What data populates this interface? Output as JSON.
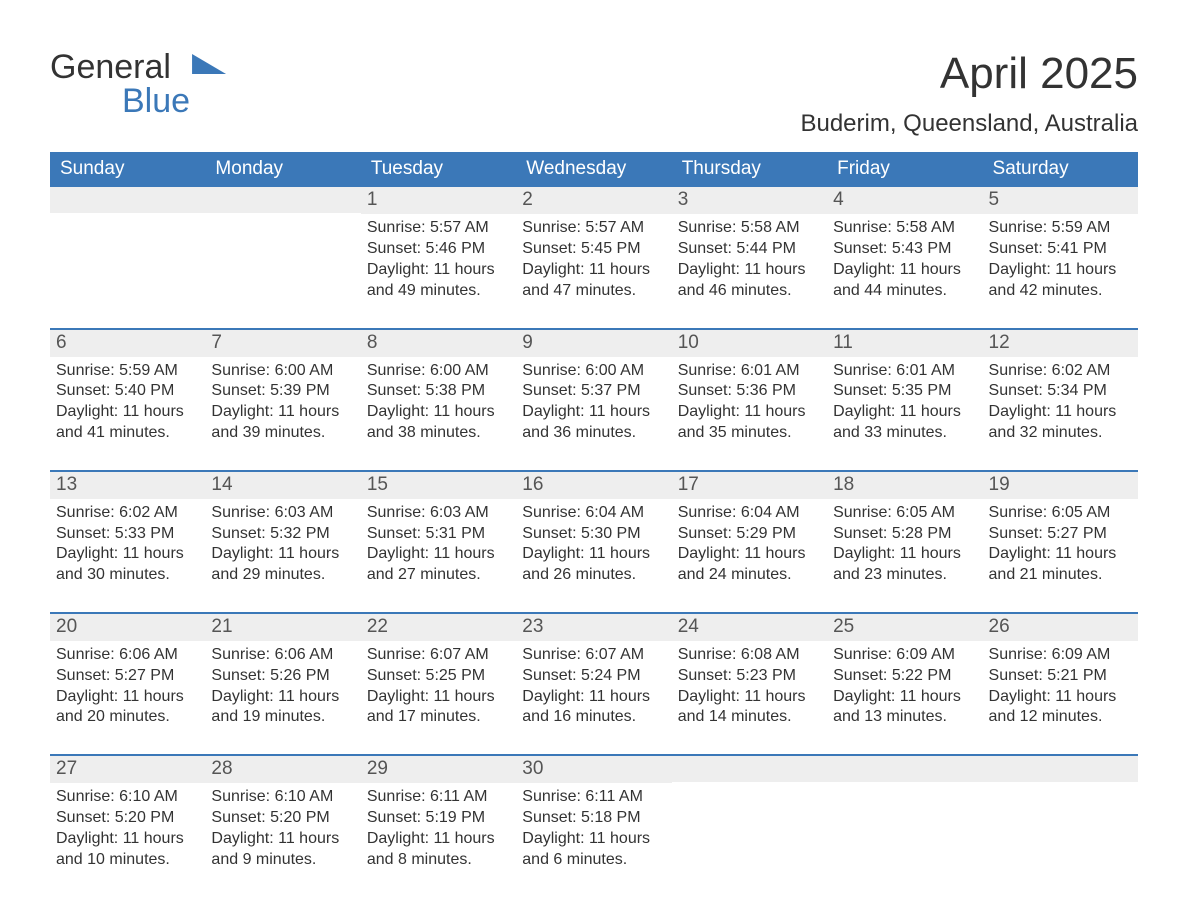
{
  "logo": {
    "word1": "General",
    "word2": "Blue"
  },
  "title": "April 2025",
  "location": "Buderim, Queensland, Australia",
  "colors": {
    "accent": "#3b78b8",
    "header_text": "#ffffff",
    "daynum_bg": "#eeeeee",
    "text": "#333333",
    "background": "#ffffff"
  },
  "calendar": {
    "type": "table",
    "columns": [
      "Sunday",
      "Monday",
      "Tuesday",
      "Wednesday",
      "Thursday",
      "Friday",
      "Saturday"
    ],
    "weeks": [
      [
        {
          "day": "",
          "sunrise": "",
          "sunset": "",
          "daylight1": "",
          "daylight2": ""
        },
        {
          "day": "",
          "sunrise": "",
          "sunset": "",
          "daylight1": "",
          "daylight2": ""
        },
        {
          "day": "1",
          "sunrise": "Sunrise: 5:57 AM",
          "sunset": "Sunset: 5:46 PM",
          "daylight1": "Daylight: 11 hours",
          "daylight2": "and 49 minutes."
        },
        {
          "day": "2",
          "sunrise": "Sunrise: 5:57 AM",
          "sunset": "Sunset: 5:45 PM",
          "daylight1": "Daylight: 11 hours",
          "daylight2": "and 47 minutes."
        },
        {
          "day": "3",
          "sunrise": "Sunrise: 5:58 AM",
          "sunset": "Sunset: 5:44 PM",
          "daylight1": "Daylight: 11 hours",
          "daylight2": "and 46 minutes."
        },
        {
          "day": "4",
          "sunrise": "Sunrise: 5:58 AM",
          "sunset": "Sunset: 5:43 PM",
          "daylight1": "Daylight: 11 hours",
          "daylight2": "and 44 minutes."
        },
        {
          "day": "5",
          "sunrise": "Sunrise: 5:59 AM",
          "sunset": "Sunset: 5:41 PM",
          "daylight1": "Daylight: 11 hours",
          "daylight2": "and 42 minutes."
        }
      ],
      [
        {
          "day": "6",
          "sunrise": "Sunrise: 5:59 AM",
          "sunset": "Sunset: 5:40 PM",
          "daylight1": "Daylight: 11 hours",
          "daylight2": "and 41 minutes."
        },
        {
          "day": "7",
          "sunrise": "Sunrise: 6:00 AM",
          "sunset": "Sunset: 5:39 PM",
          "daylight1": "Daylight: 11 hours",
          "daylight2": "and 39 minutes."
        },
        {
          "day": "8",
          "sunrise": "Sunrise: 6:00 AM",
          "sunset": "Sunset: 5:38 PM",
          "daylight1": "Daylight: 11 hours",
          "daylight2": "and 38 minutes."
        },
        {
          "day": "9",
          "sunrise": "Sunrise: 6:00 AM",
          "sunset": "Sunset: 5:37 PM",
          "daylight1": "Daylight: 11 hours",
          "daylight2": "and 36 minutes."
        },
        {
          "day": "10",
          "sunrise": "Sunrise: 6:01 AM",
          "sunset": "Sunset: 5:36 PM",
          "daylight1": "Daylight: 11 hours",
          "daylight2": "and 35 minutes."
        },
        {
          "day": "11",
          "sunrise": "Sunrise: 6:01 AM",
          "sunset": "Sunset: 5:35 PM",
          "daylight1": "Daylight: 11 hours",
          "daylight2": "and 33 minutes."
        },
        {
          "day": "12",
          "sunrise": "Sunrise: 6:02 AM",
          "sunset": "Sunset: 5:34 PM",
          "daylight1": "Daylight: 11 hours",
          "daylight2": "and 32 minutes."
        }
      ],
      [
        {
          "day": "13",
          "sunrise": "Sunrise: 6:02 AM",
          "sunset": "Sunset: 5:33 PM",
          "daylight1": "Daylight: 11 hours",
          "daylight2": "and 30 minutes."
        },
        {
          "day": "14",
          "sunrise": "Sunrise: 6:03 AM",
          "sunset": "Sunset: 5:32 PM",
          "daylight1": "Daylight: 11 hours",
          "daylight2": "and 29 minutes."
        },
        {
          "day": "15",
          "sunrise": "Sunrise: 6:03 AM",
          "sunset": "Sunset: 5:31 PM",
          "daylight1": "Daylight: 11 hours",
          "daylight2": "and 27 minutes."
        },
        {
          "day": "16",
          "sunrise": "Sunrise: 6:04 AM",
          "sunset": "Sunset: 5:30 PM",
          "daylight1": "Daylight: 11 hours",
          "daylight2": "and 26 minutes."
        },
        {
          "day": "17",
          "sunrise": "Sunrise: 6:04 AM",
          "sunset": "Sunset: 5:29 PM",
          "daylight1": "Daylight: 11 hours",
          "daylight2": "and 24 minutes."
        },
        {
          "day": "18",
          "sunrise": "Sunrise: 6:05 AM",
          "sunset": "Sunset: 5:28 PM",
          "daylight1": "Daylight: 11 hours",
          "daylight2": "and 23 minutes."
        },
        {
          "day": "19",
          "sunrise": "Sunrise: 6:05 AM",
          "sunset": "Sunset: 5:27 PM",
          "daylight1": "Daylight: 11 hours",
          "daylight2": "and 21 minutes."
        }
      ],
      [
        {
          "day": "20",
          "sunrise": "Sunrise: 6:06 AM",
          "sunset": "Sunset: 5:27 PM",
          "daylight1": "Daylight: 11 hours",
          "daylight2": "and 20 minutes."
        },
        {
          "day": "21",
          "sunrise": "Sunrise: 6:06 AM",
          "sunset": "Sunset: 5:26 PM",
          "daylight1": "Daylight: 11 hours",
          "daylight2": "and 19 minutes."
        },
        {
          "day": "22",
          "sunrise": "Sunrise: 6:07 AM",
          "sunset": "Sunset: 5:25 PM",
          "daylight1": "Daylight: 11 hours",
          "daylight2": "and 17 minutes."
        },
        {
          "day": "23",
          "sunrise": "Sunrise: 6:07 AM",
          "sunset": "Sunset: 5:24 PM",
          "daylight1": "Daylight: 11 hours",
          "daylight2": "and 16 minutes."
        },
        {
          "day": "24",
          "sunrise": "Sunrise: 6:08 AM",
          "sunset": "Sunset: 5:23 PM",
          "daylight1": "Daylight: 11 hours",
          "daylight2": "and 14 minutes."
        },
        {
          "day": "25",
          "sunrise": "Sunrise: 6:09 AM",
          "sunset": "Sunset: 5:22 PM",
          "daylight1": "Daylight: 11 hours",
          "daylight2": "and 13 minutes."
        },
        {
          "day": "26",
          "sunrise": "Sunrise: 6:09 AM",
          "sunset": "Sunset: 5:21 PM",
          "daylight1": "Daylight: 11 hours",
          "daylight2": "and 12 minutes."
        }
      ],
      [
        {
          "day": "27",
          "sunrise": "Sunrise: 6:10 AM",
          "sunset": "Sunset: 5:20 PM",
          "daylight1": "Daylight: 11 hours",
          "daylight2": "and 10 minutes."
        },
        {
          "day": "28",
          "sunrise": "Sunrise: 6:10 AM",
          "sunset": "Sunset: 5:20 PM",
          "daylight1": "Daylight: 11 hours",
          "daylight2": "and 9 minutes."
        },
        {
          "day": "29",
          "sunrise": "Sunrise: 6:11 AM",
          "sunset": "Sunset: 5:19 PM",
          "daylight1": "Daylight: 11 hours",
          "daylight2": "and 8 minutes."
        },
        {
          "day": "30",
          "sunrise": "Sunrise: 6:11 AM",
          "sunset": "Sunset: 5:18 PM",
          "daylight1": "Daylight: 11 hours",
          "daylight2": "and 6 minutes."
        },
        {
          "day": "",
          "sunrise": "",
          "sunset": "",
          "daylight1": "",
          "daylight2": ""
        },
        {
          "day": "",
          "sunrise": "",
          "sunset": "",
          "daylight1": "",
          "daylight2": ""
        },
        {
          "day": "",
          "sunrise": "",
          "sunset": "",
          "daylight1": "",
          "daylight2": ""
        }
      ]
    ]
  }
}
